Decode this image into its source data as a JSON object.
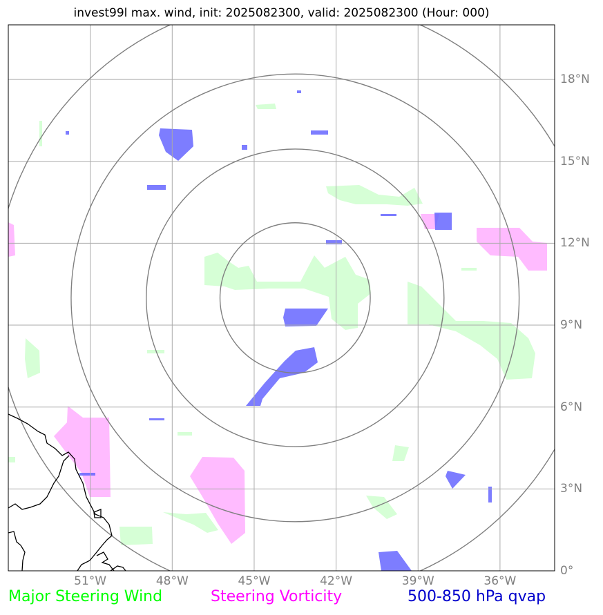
{
  "title": "invest99l max. wind, init: 2025082300, valid: 2025082300 (Hour: 000)",
  "map": {
    "lon_range": [
      -54,
      -34
    ],
    "lat_range": [
      0,
      20
    ],
    "lon_ticks": [
      {
        "value": -51,
        "label": "51°W"
      },
      {
        "value": -48,
        "label": "48°W"
      },
      {
        "value": -45,
        "label": "45°W"
      },
      {
        "value": -42,
        "label": "42°W"
      },
      {
        "value": -39,
        "label": "39°W"
      },
      {
        "value": -36,
        "label": "36°W"
      }
    ],
    "lat_ticks": [
      {
        "value": 18,
        "label": "18°N"
      },
      {
        "value": 15,
        "label": "15°N"
      },
      {
        "value": 12,
        "label": "12°N"
      },
      {
        "value": 9,
        "label": "9°N"
      },
      {
        "value": 6,
        "label": "6°N"
      },
      {
        "value": 3,
        "label": "3°N"
      },
      {
        "value": 0,
        "label": "0°"
      }
    ],
    "storm_center": {
      "lon": -43.5,
      "lat": 10.0
    },
    "range_rings_deg": [
      2.75,
      5.45,
      8.2,
      11.0
    ],
    "colors": {
      "ring": "#808080",
      "grid": "#aaaaaa",
      "coast": "#000000",
      "steering_wind": "#c8ffc8",
      "steering_vorticity": "#ffaaff",
      "qvap": "#6666ff"
    }
  },
  "legend": [
    {
      "label": "Major Steering Wind",
      "color": "#00ff00"
    },
    {
      "label": "Steering Vorticity",
      "color": "#ff00ff"
    },
    {
      "label": "500-850 hPa qvap",
      "color": "#0000cc"
    }
  ]
}
